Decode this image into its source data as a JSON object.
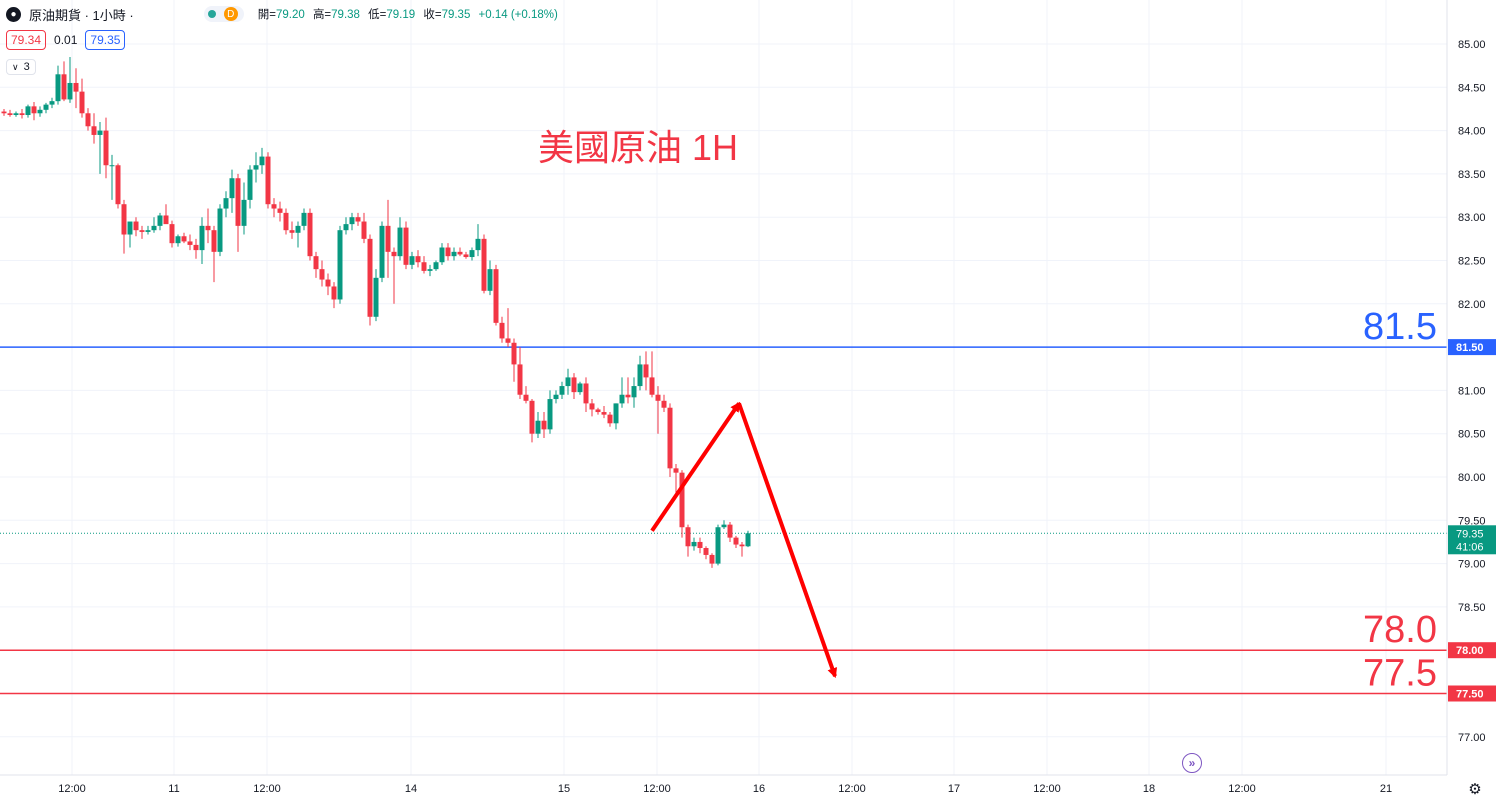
{
  "header": {
    "symbol_icon": "oil-drop-icon",
    "title": "原油期貨 · 1小時 ·",
    "market_badge": "D",
    "ohlc": {
      "open_label": "開=",
      "open": "79.20",
      "high_label": "高=",
      "high": "79.38",
      "low_label": "低=",
      "low": "79.19",
      "close_label": "收=",
      "close": "79.35",
      "change": "+0.14 (+0.18%)"
    }
  },
  "quote": {
    "bid": "79.34",
    "spread": "0.01",
    "ask": "79.35"
  },
  "indicators": {
    "count": "3"
  },
  "colors": {
    "up": "#089981",
    "down": "#f23645",
    "blue_line": "#2962ff",
    "red_line": "#f23645",
    "arrow": "#ff0000",
    "annotation": "#f23645"
  },
  "chart_data": {
    "type": "candlestick",
    "title": "美國原油 1H",
    "ylim": [
      76.75,
      85.5
    ],
    "y_ticks": [
      "85.00",
      "84.50",
      "84.00",
      "83.50",
      "83.00",
      "82.50",
      "82.00",
      "81.50",
      "81.00",
      "80.50",
      "80.00",
      "79.50",
      "79.00",
      "78.50",
      "78.00",
      "77.50",
      "77.00"
    ],
    "x_labels": [
      "12:00",
      "11",
      "12:00",
      "14",
      "15",
      "12:00",
      "16",
      "12:00",
      "17",
      "12:00",
      "18",
      "12:00",
      "21"
    ],
    "current_price": {
      "value": 79.35,
      "label": "79.35",
      "countdown": "41:06"
    },
    "levels": [
      {
        "value": 81.5,
        "annotation": "81.5",
        "axis_label": "81.50",
        "color": "#2962ff"
      },
      {
        "value": 78.0,
        "annotation": "78.0",
        "axis_label": "78.00",
        "color": "#f23645"
      },
      {
        "value": 77.5,
        "annotation": "77.5",
        "axis_label": "77.50",
        "color": "#f23645"
      }
    ],
    "projection": [
      {
        "bar": 108,
        "price": 79.38
      },
      {
        "bar": 122.5,
        "price": 80.85
      },
      {
        "bar": 138.5,
        "price": 77.7
      }
    ],
    "candles": [
      [
        84.22,
        84.25,
        84.17,
        84.2
      ],
      [
        84.2,
        84.24,
        84.16,
        84.18
      ],
      [
        84.18,
        84.22,
        84.16,
        84.2
      ],
      [
        84.2,
        84.25,
        84.14,
        84.18
      ],
      [
        84.18,
        84.3,
        84.15,
        84.28
      ],
      [
        84.28,
        84.33,
        84.12,
        84.2
      ],
      [
        84.2,
        84.28,
        84.16,
        84.24
      ],
      [
        84.24,
        84.32,
        84.2,
        84.3
      ],
      [
        84.3,
        84.38,
        84.26,
        84.34
      ],
      [
        84.34,
        84.75,
        84.3,
        84.65
      ],
      [
        84.65,
        84.8,
        84.34,
        84.36
      ],
      [
        84.36,
        84.85,
        84.32,
        84.55
      ],
      [
        84.55,
        84.72,
        84.26,
        84.45
      ],
      [
        84.45,
        84.6,
        84.15,
        84.2
      ],
      [
        84.2,
        84.26,
        84.0,
        84.05
      ],
      [
        84.05,
        84.2,
        83.85,
        83.95
      ],
      [
        83.95,
        84.1,
        83.5,
        84.0
      ],
      [
        84.0,
        84.15,
        83.45,
        83.6
      ],
      [
        83.6,
        83.72,
        83.2,
        83.6
      ],
      [
        83.6,
        83.62,
        83.1,
        83.15
      ],
      [
        83.15,
        83.2,
        82.58,
        82.8
      ],
      [
        82.8,
        82.9,
        82.65,
        82.95
      ],
      [
        82.95,
        83.0,
        82.78,
        82.85
      ],
      [
        82.85,
        82.9,
        82.75,
        82.83
      ],
      [
        82.83,
        82.9,
        82.8,
        82.85
      ],
      [
        82.85,
        83.0,
        82.82,
        82.9
      ],
      [
        82.9,
        83.05,
        82.85,
        83.02
      ],
      [
        83.02,
        83.15,
        82.95,
        82.92
      ],
      [
        82.92,
        82.96,
        82.65,
        82.7
      ],
      [
        82.7,
        82.8,
        82.66,
        82.78
      ],
      [
        82.78,
        82.82,
        82.7,
        82.72
      ],
      [
        82.72,
        82.8,
        82.62,
        82.68
      ],
      [
        82.68,
        82.75,
        82.52,
        82.62
      ],
      [
        82.62,
        83.0,
        82.46,
        82.9
      ],
      [
        82.9,
        83.1,
        82.7,
        82.85
      ],
      [
        82.85,
        82.9,
        82.25,
        82.6
      ],
      [
        82.6,
        83.15,
        82.55,
        83.1
      ],
      [
        83.1,
        83.3,
        83.0,
        83.22
      ],
      [
        83.22,
        83.55,
        83.05,
        83.45
      ],
      [
        83.45,
        83.5,
        82.6,
        82.9
      ],
      [
        82.9,
        83.4,
        82.8,
        83.2
      ],
      [
        83.2,
        83.6,
        83.1,
        83.55
      ],
      [
        83.55,
        83.75,
        83.4,
        83.6
      ],
      [
        83.6,
        83.8,
        83.5,
        83.7
      ],
      [
        83.7,
        83.75,
        83.1,
        83.15
      ],
      [
        83.15,
        83.22,
        83.0,
        83.1
      ],
      [
        83.1,
        83.18,
        82.95,
        83.05
      ],
      [
        83.05,
        83.1,
        82.8,
        82.85
      ],
      [
        82.85,
        82.95,
        82.75,
        82.82
      ],
      [
        82.82,
        82.95,
        82.65,
        82.9
      ],
      [
        82.9,
        83.1,
        82.85,
        83.05
      ],
      [
        83.05,
        83.1,
        82.5,
        82.55
      ],
      [
        82.55,
        82.6,
        82.3,
        82.4
      ],
      [
        82.4,
        82.5,
        82.2,
        82.28
      ],
      [
        82.28,
        82.35,
        82.1,
        82.2
      ],
      [
        82.2,
        82.25,
        81.95,
        82.05
      ],
      [
        82.05,
        82.9,
        82.0,
        82.85
      ],
      [
        82.85,
        83.0,
        82.8,
        82.92
      ],
      [
        82.92,
        83.05,
        82.85,
        83.0
      ],
      [
        83.0,
        83.05,
        82.9,
        82.95
      ],
      [
        82.95,
        83.05,
        82.7,
        82.75
      ],
      [
        82.75,
        82.8,
        81.75,
        81.85
      ],
      [
        81.85,
        82.4,
        81.8,
        82.3
      ],
      [
        82.3,
        82.95,
        82.25,
        82.9
      ],
      [
        82.9,
        83.2,
        82.3,
        82.6
      ],
      [
        82.6,
        82.65,
        82.0,
        82.55
      ],
      [
        82.55,
        83.0,
        82.5,
        82.88
      ],
      [
        82.88,
        82.95,
        82.4,
        82.45
      ],
      [
        82.45,
        82.6,
        82.4,
        82.55
      ],
      [
        82.55,
        82.62,
        82.42,
        82.48
      ],
      [
        82.48,
        82.55,
        82.35,
        82.38
      ],
      [
        82.38,
        82.45,
        82.32,
        82.4
      ],
      [
        82.4,
        82.5,
        82.38,
        82.48
      ],
      [
        82.48,
        82.7,
        82.45,
        82.65
      ],
      [
        82.65,
        82.7,
        82.5,
        82.55
      ],
      [
        82.55,
        82.65,
        82.5,
        82.6
      ],
      [
        82.6,
        82.65,
        82.55,
        82.57
      ],
      [
        82.57,
        82.6,
        82.52,
        82.54
      ],
      [
        82.54,
        82.65,
        82.5,
        82.62
      ],
      [
        82.62,
        82.92,
        82.55,
        82.75
      ],
      [
        82.75,
        82.8,
        82.12,
        82.15
      ],
      [
        82.15,
        82.5,
        82.1,
        82.4
      ],
      [
        82.4,
        82.45,
        81.75,
        81.78
      ],
      [
        81.78,
        81.85,
        81.55,
        81.6
      ],
      [
        81.6,
        81.95,
        81.5,
        81.55
      ],
      [
        81.55,
        81.6,
        81.1,
        81.3
      ],
      [
        81.3,
        81.5,
        80.9,
        80.95
      ],
      [
        80.95,
        81.05,
        80.85,
        80.88
      ],
      [
        80.88,
        80.9,
        80.4,
        80.5
      ],
      [
        80.5,
        80.75,
        80.45,
        80.65
      ],
      [
        80.65,
        80.75,
        80.45,
        80.55
      ],
      [
        80.55,
        81.0,
        80.5,
        80.9
      ],
      [
        80.9,
        81.0,
        80.85,
        80.95
      ],
      [
        80.95,
        81.1,
        80.9,
        81.05
      ],
      [
        81.05,
        81.25,
        80.95,
        81.15
      ],
      [
        81.15,
        81.2,
        80.9,
        80.98
      ],
      [
        80.98,
        81.1,
        80.95,
        81.08
      ],
      [
        81.08,
        81.15,
        80.75,
        80.85
      ],
      [
        80.85,
        80.9,
        80.7,
        80.78
      ],
      [
        80.78,
        80.8,
        80.72,
        80.75
      ],
      [
        80.75,
        80.82,
        80.68,
        80.72
      ],
      [
        80.72,
        80.75,
        80.58,
        80.62
      ],
      [
        80.62,
        80.85,
        80.55,
        80.85
      ],
      [
        80.85,
        81.15,
        80.8,
        80.95
      ],
      [
        80.95,
        81.15,
        80.85,
        80.92
      ],
      [
        80.92,
        81.15,
        80.8,
        81.05
      ],
      [
        81.05,
        81.4,
        81.0,
        81.3
      ],
      [
        81.3,
        81.45,
        81.0,
        81.15
      ],
      [
        81.15,
        81.45,
        80.92,
        80.95
      ],
      [
        80.95,
        81.05,
        80.5,
        80.88
      ],
      [
        80.88,
        80.95,
        80.75,
        80.8
      ],
      [
        80.8,
        80.85,
        80.0,
        80.1
      ],
      [
        80.1,
        80.15,
        79.8,
        80.05
      ],
      [
        80.05,
        80.08,
        79.3,
        79.42
      ],
      [
        79.42,
        79.45,
        79.08,
        79.2
      ],
      [
        79.2,
        79.3,
        79.15,
        79.25
      ],
      [
        79.25,
        79.3,
        79.12,
        79.18
      ],
      [
        79.18,
        79.2,
        79.05,
        79.1
      ],
      [
        79.1,
        79.12,
        78.95,
        79.0
      ],
      [
        79.0,
        79.45,
        78.98,
        79.42
      ],
      [
        79.42,
        79.5,
        79.4,
        79.45
      ],
      [
        79.45,
        79.48,
        79.25,
        79.3
      ],
      [
        79.3,
        79.32,
        79.18,
        79.22
      ],
      [
        79.22,
        79.25,
        79.08,
        79.2
      ],
      [
        79.2,
        79.38,
        79.19,
        79.35
      ]
    ]
  }
}
